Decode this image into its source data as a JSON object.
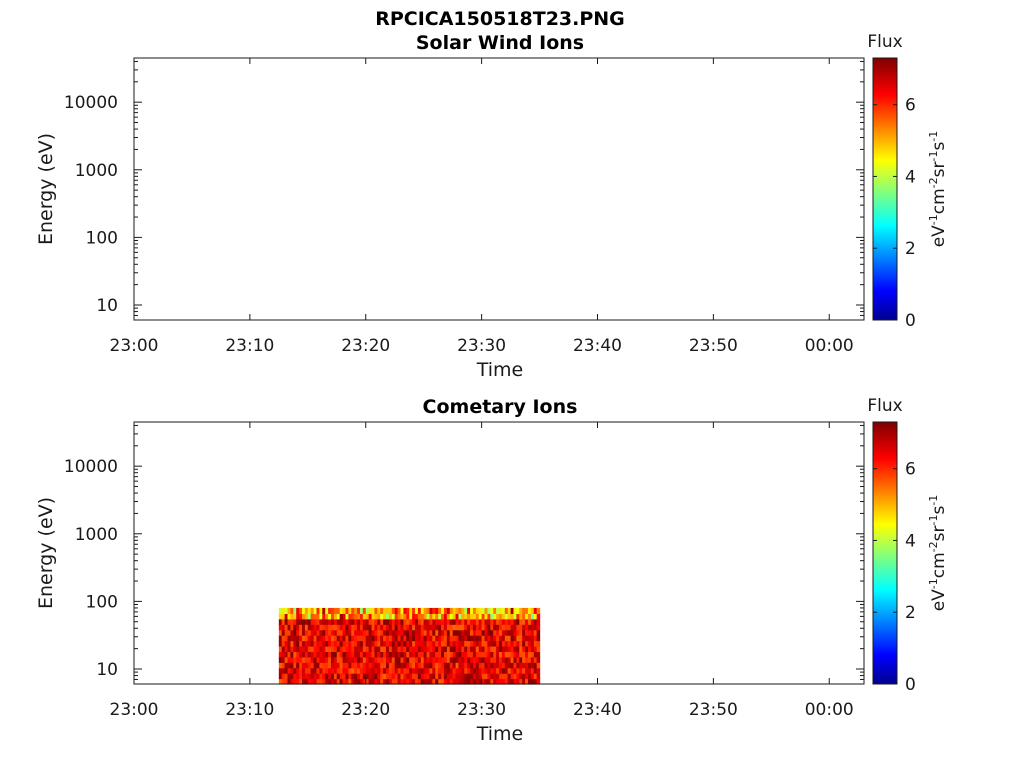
{
  "figure": {
    "title": "RPCICA150518T23.PNG"
  },
  "chart_data": [
    {
      "type": "heatmap",
      "title": "Solar Wind Ions",
      "xlabel": "Time",
      "ylabel": "Energy (eV)",
      "x_ticks": [
        "23:00",
        "23:10",
        "23:20",
        "23:30",
        "23:40",
        "23:50",
        "00:00"
      ],
      "x_range_minutes": [
        0,
        63
      ],
      "y_scale": "log",
      "y_ticks": [
        "10",
        "100",
        "1000",
        "10000"
      ],
      "y_range": [
        6,
        45000
      ],
      "colorbar": {
        "title": "Flux",
        "label": "eV-1cm-2sr-1s-1",
        "ticks": [
          "0",
          "2",
          "4",
          "6"
        ],
        "range": [
          0,
          7.3
        ],
        "colormap": "jet"
      },
      "data_blocks": []
    },
    {
      "type": "heatmap",
      "title": "Cometary Ions",
      "xlabel": "Time",
      "ylabel": "Energy (eV)",
      "x_ticks": [
        "23:00",
        "23:10",
        "23:20",
        "23:30",
        "23:40",
        "23:50",
        "00:00"
      ],
      "x_range_minutes": [
        0,
        63
      ],
      "y_scale": "log",
      "y_ticks": [
        "10",
        "100",
        "1000",
        "10000"
      ],
      "y_range": [
        6,
        45000
      ],
      "colorbar": {
        "title": "Flux",
        "label": "eV-1cm-2sr-1s-1",
        "ticks": [
          "0",
          "2",
          "4",
          "6"
        ],
        "range": [
          0,
          7.3
        ],
        "colormap": "jet"
      },
      "data_blocks": [
        {
          "x_start_minutes": 12.5,
          "x_end_minutes": 35.0,
          "energy_min": 6,
          "energy_max": 80,
          "flux_min": 5.0,
          "flux_max": 7.3,
          "flux_typical": 6.5
        }
      ]
    }
  ]
}
